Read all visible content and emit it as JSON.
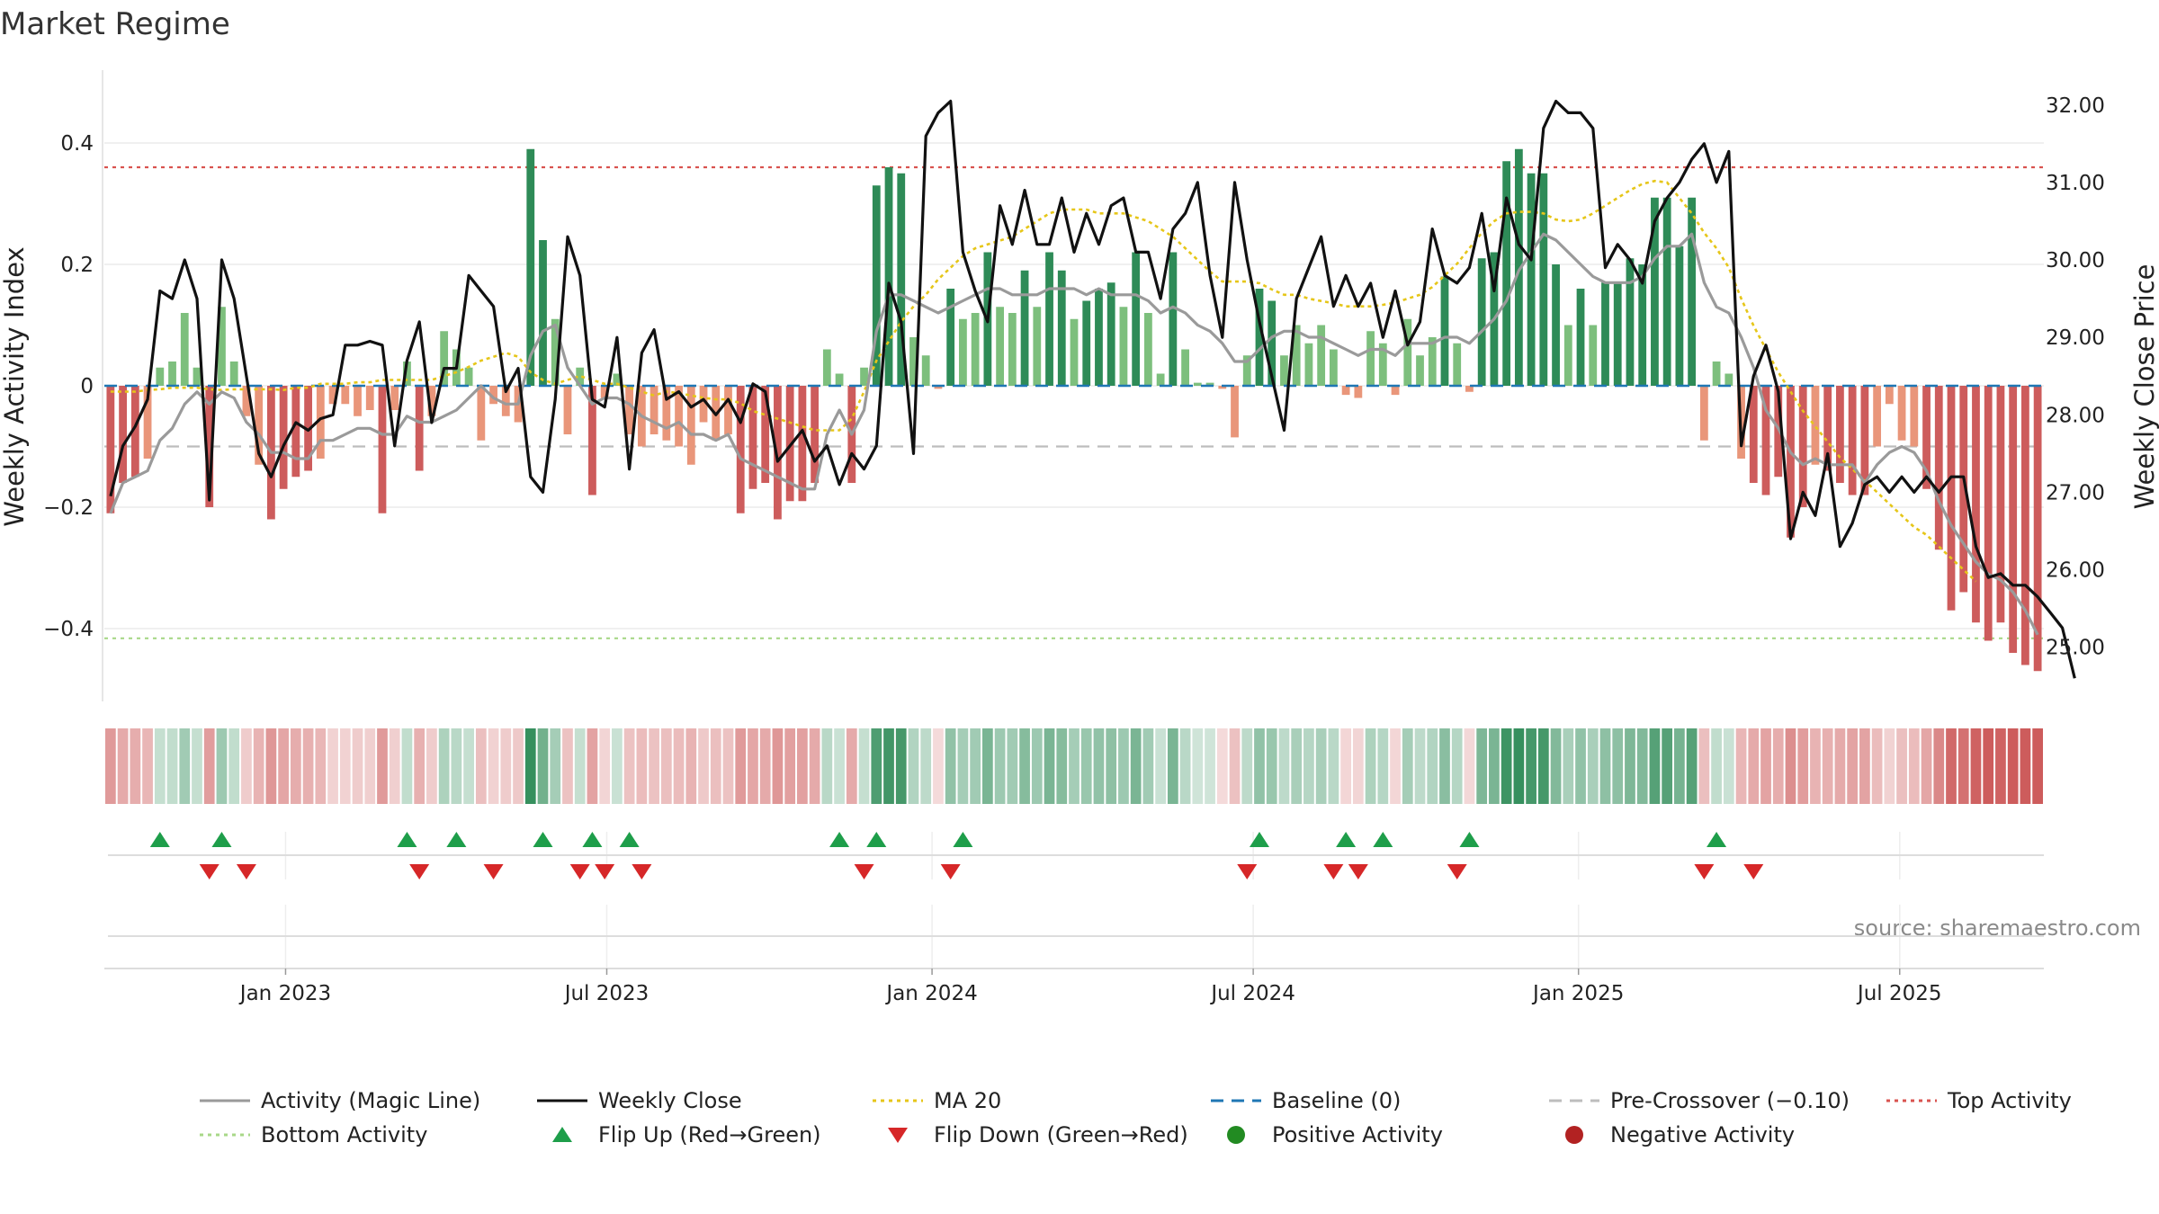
{
  "title": "Market Regime",
  "source_text": "source: sharemaestro.com",
  "colors": {
    "strong_green": "#2e8b57",
    "light_green": "#7dbf7d",
    "strong_red": "#cd5c5c",
    "light_red": "#e9967a",
    "magic_line": "#9a9a9a",
    "close": "#111111",
    "ma20": "#e6c619",
    "baseline": "#1f77b4",
    "pre_crossover": "#bdbdbd",
    "top_line": "#d9534f",
    "bottom_line": "#a8d888",
    "flip_up": "#1e9e4a",
    "flip_down": "#d62728",
    "positive_dot": "#228b22",
    "negative_dot": "#b22222"
  },
  "legend": [
    {
      "label": "Activity (Magic Line)",
      "kind": "line",
      "color": "#9a9a9a",
      "dash": "none"
    },
    {
      "label": "Weekly Close",
      "kind": "line",
      "color": "#111111",
      "dash": "none"
    },
    {
      "label": "MA 20",
      "kind": "line",
      "color": "#e6c619",
      "dash": "dot"
    },
    {
      "label": "Baseline (0)",
      "kind": "line",
      "color": "#1f77b4",
      "dash": "dash"
    },
    {
      "label": "Pre-Crossover (−0.10)",
      "kind": "line",
      "color": "#bdbdbd",
      "dash": "dash"
    },
    {
      "label": "Top Activity",
      "kind": "line",
      "color": "#d9534f",
      "dash": "dot"
    },
    {
      "label": "Bottom Activity",
      "kind": "line",
      "color": "#a8d888",
      "dash": "dot"
    },
    {
      "label": "Flip Up (Red→Green)",
      "kind": "tri-up",
      "color": "#1e9e4a"
    },
    {
      "label": "Flip Down (Green→Red)",
      "kind": "tri-down",
      "color": "#d62728"
    },
    {
      "label": "Positive Activity",
      "kind": "dot",
      "color": "#228b22"
    },
    {
      "label": "Negative Activity",
      "kind": "dot",
      "color": "#b22222"
    }
  ],
  "chart_data": {
    "type": "bar",
    "title": "Market Regime",
    "ylabel_left": "Weekly Activity Index",
    "ylabel_right": "Weekly Close Price",
    "ylim_left": [
      -0.52,
      0.52
    ],
    "ylim_right": [
      24.3,
      32.45
    ],
    "yticks_left": [
      {
        "v": 0.4,
        "label": "0.4"
      },
      {
        "v": 0.2,
        "label": "0.2"
      },
      {
        "v": 0,
        "label": "0"
      },
      {
        "v": -0.2,
        "label": "−0.2"
      },
      {
        "v": -0.4,
        "label": "−0.4"
      }
    ],
    "yticks_right": [
      {
        "v": 32,
        "label": "32.00"
      },
      {
        "v": 31,
        "label": "31.00"
      },
      {
        "v": 30,
        "label": "30.00"
      },
      {
        "v": 29,
        "label": "29.00"
      },
      {
        "v": 28,
        "label": "28.00"
      },
      {
        "v": 27,
        "label": "27.00"
      },
      {
        "v": 26,
        "label": "26.00"
      },
      {
        "v": 25,
        "label": "25.00"
      }
    ],
    "x_range": [
      0,
      157
    ],
    "x_ticks": [
      {
        "x": 14.67,
        "label": "Jan 2023"
      },
      {
        "x": 40.67,
        "label": "Jul 2023"
      },
      {
        "x": 67.0,
        "label": "Jan 2024"
      },
      {
        "x": 93.0,
        "label": "Jul 2024"
      },
      {
        "x": 119.33,
        "label": "Jan 2025"
      },
      {
        "x": 145.33,
        "label": "Jul 2025"
      }
    ],
    "reference_lines": {
      "top": 0.36,
      "bottom": -0.416,
      "pre_crossover": -0.1,
      "baseline": 0
    },
    "activity": [
      -0.21,
      -0.16,
      -0.15,
      -0.12,
      0.03,
      0.04,
      0.12,
      0.03,
      -0.2,
      0.13,
      0.04,
      -0.05,
      -0.13,
      -0.22,
      -0.17,
      -0.15,
      -0.14,
      -0.12,
      -0.03,
      -0.03,
      -0.05,
      -0.04,
      -0.21,
      -0.04,
      0.04,
      -0.14,
      -0.05,
      0.09,
      0.06,
      0.03,
      -0.09,
      -0.03,
      -0.05,
      -0.06,
      0.39,
      0.24,
      0.11,
      -0.08,
      0.03,
      -0.18,
      -0.02,
      0.02,
      -0.08,
      -0.1,
      -0.08,
      -0.09,
      -0.1,
      -0.13,
      -0.06,
      -0.09,
      -0.08,
      -0.21,
      -0.17,
      -0.16,
      -0.22,
      -0.19,
      -0.19,
      -0.16,
      0.06,
      0.02,
      -0.16,
      0.03,
      0.33,
      0.36,
      0.35,
      0.08,
      0.05,
      -0.005,
      0.16,
      0.11,
      0.12,
      0.22,
      0.13,
      0.12,
      0.19,
      0.13,
      0.22,
      0.19,
      0.11,
      0.14,
      0.16,
      0.17,
      0.13,
      0.22,
      0.12,
      0.02,
      0.22,
      0.06,
      0.005,
      0.005,
      -0.005,
      -0.085,
      0.05,
      0.16,
      0.14,
      0.05,
      0.1,
      0.07,
      0.1,
      0.06,
      -0.015,
      -0.02,
      0.09,
      0.07,
      -0.015,
      0.11,
      0.05,
      0.08,
      0.18,
      0.07,
      -0.01,
      0.21,
      0.22,
      0.37,
      0.39,
      0.35,
      0.35,
      0.2,
      0.1,
      0.16,
      0.1,
      0.17,
      0.17,
      0.21,
      0.2,
      0.31,
      0.31,
      0.23,
      0.31,
      -0.09,
      0.04,
      0.02,
      -0.12,
      -0.16,
      -0.18,
      -0.15,
      -0.25,
      -0.2,
      -0.13,
      -0.14,
      -0.16,
      -0.18,
      -0.18,
      -0.1,
      -0.03,
      -0.09,
      -0.1,
      -0.17,
      -0.27,
      -0.37,
      -0.34,
      -0.39,
      -0.42,
      -0.39,
      -0.44,
      -0.46,
      -0.47
    ],
    "magic_line": [
      -0.21,
      -0.16,
      -0.15,
      -0.14,
      -0.09,
      -0.07,
      -0.03,
      -0.01,
      -0.03,
      -0.01,
      -0.02,
      -0.06,
      -0.08,
      -0.11,
      -0.11,
      -0.12,
      -0.12,
      -0.09,
      -0.09,
      -0.08,
      -0.07,
      -0.07,
      -0.08,
      -0.08,
      -0.05,
      -0.06,
      -0.06,
      -0.05,
      -0.04,
      -0.02,
      0.0,
      -0.02,
      -0.03,
      -0.03,
      0.05,
      0.09,
      0.1,
      0.03,
      0.0,
      -0.03,
      -0.02,
      -0.02,
      -0.03,
      -0.05,
      -0.06,
      -0.07,
      -0.06,
      -0.08,
      -0.08,
      -0.09,
      -0.08,
      -0.12,
      -0.13,
      -0.14,
      -0.15,
      -0.16,
      -0.17,
      -0.17,
      -0.08,
      -0.04,
      -0.08,
      -0.04,
      0.09,
      0.15,
      0.15,
      0.14,
      0.13,
      0.12,
      0.13,
      0.14,
      0.15,
      0.16,
      0.16,
      0.15,
      0.15,
      0.15,
      0.16,
      0.16,
      0.16,
      0.15,
      0.16,
      0.15,
      0.15,
      0.15,
      0.14,
      0.12,
      0.13,
      0.12,
      0.1,
      0.09,
      0.07,
      0.04,
      0.04,
      0.06,
      0.08,
      0.09,
      0.09,
      0.08,
      0.08,
      0.07,
      0.06,
      0.05,
      0.06,
      0.06,
      0.05,
      0.07,
      0.07,
      0.07,
      0.08,
      0.08,
      0.07,
      0.09,
      0.11,
      0.14,
      0.19,
      0.22,
      0.25,
      0.24,
      0.22,
      0.2,
      0.18,
      0.17,
      0.17,
      0.17,
      0.18,
      0.21,
      0.23,
      0.23,
      0.25,
      0.17,
      0.13,
      0.12,
      0.08,
      0.03,
      -0.04,
      -0.07,
      -0.11,
      -0.13,
      -0.12,
      -0.13,
      -0.13,
      -0.13,
      -0.16,
      -0.13,
      -0.11,
      -0.1,
      -0.11,
      -0.14,
      -0.19,
      -0.23,
      -0.26,
      -0.29,
      -0.31,
      -0.32,
      -0.34,
      -0.37,
      -0.41
    ],
    "weekly_close": [
      26.95,
      27.6,
      27.85,
      28.2,
      29.6,
      29.5,
      30.0,
      29.5,
      26.9,
      30.0,
      29.5,
      28.5,
      27.5,
      27.2,
      27.6,
      27.9,
      27.8,
      27.95,
      28.0,
      28.9,
      28.9,
      28.95,
      28.9,
      27.6,
      28.7,
      29.2,
      27.9,
      28.6,
      28.6,
      29.8,
      29.6,
      29.4,
      28.3,
      28.6,
      27.2,
      27.0,
      28.2,
      30.3,
      29.8,
      28.2,
      28.1,
      29.0,
      27.3,
      28.8,
      29.1,
      28.2,
      28.3,
      28.1,
      28.2,
      28.0,
      28.2,
      27.9,
      28.4,
      28.3,
      27.4,
      27.6,
      27.8,
      27.4,
      27.6,
      27.1,
      27.5,
      27.3,
      27.6,
      29.7,
      29.2,
      27.5,
      31.6,
      31.9,
      32.05,
      30.1,
      29.6,
      29.2,
      30.7,
      30.2,
      30.9,
      30.2,
      30.2,
      30.8,
      30.1,
      30.6,
      30.2,
      30.7,
      30.8,
      30.1,
      30.1,
      29.5,
      30.4,
      30.6,
      31.0,
      29.8,
      29.0,
      31.0,
      30.0,
      29.2,
      28.5,
      27.8,
      29.5,
      29.9,
      30.3,
      29.4,
      29.8,
      29.4,
      29.7,
      29.0,
      29.6,
      28.9,
      29.2,
      30.4,
      29.8,
      29.7,
      29.9,
      30.6,
      29.6,
      30.8,
      30.2,
      30.0,
      31.7,
      32.05,
      31.9,
      31.9,
      31.7,
      29.9,
      30.2,
      30.0,
      29.7,
      30.5,
      30.8,
      31.0,
      31.3,
      31.5,
      31.0,
      31.4,
      27.6,
      28.5,
      28.9,
      28.3,
      26.4,
      27.0,
      26.7,
      27.5,
      26.3,
      26.6,
      27.1,
      27.2,
      27.0,
      27.2,
      27.0,
      27.2,
      27.0,
      27.2,
      27.2,
      26.3,
      25.9,
      25.95,
      25.8,
      25.8,
      25.65,
      25.45,
      25.25,
      24.6
    ],
    "ma20": [
      28.3,
      28.3,
      28.3,
      28.32,
      28.33,
      28.35,
      28.35,
      28.35,
      28.33,
      28.32,
      28.33,
      28.33,
      28.33,
      28.33,
      28.32,
      28.35,
      28.35,
      28.4,
      28.4,
      28.4,
      28.42,
      28.42,
      28.45,
      28.45,
      28.45,
      28.45,
      28.45,
      28.5,
      28.55,
      28.62,
      28.7,
      28.75,
      28.8,
      28.75,
      28.55,
      28.45,
      28.4,
      28.45,
      28.5,
      28.45,
      28.4,
      28.4,
      28.35,
      28.3,
      28.25,
      28.3,
      28.28,
      28.25,
      28.22,
      28.2,
      28.2,
      28.15,
      28.05,
      28.0,
      27.95,
      27.9,
      27.85,
      27.8,
      27.8,
      27.8,
      27.95,
      28.3,
      28.7,
      28.95,
      29.2,
      29.4,
      29.55,
      29.75,
      29.9,
      30.05,
      30.15,
      30.2,
      30.25,
      30.3,
      30.4,
      30.5,
      30.6,
      30.65,
      30.65,
      30.65,
      30.6,
      30.6,
      30.6,
      30.55,
      30.5,
      30.4,
      30.3,
      30.15,
      30.0,
      29.85,
      29.72,
      29.72,
      29.72,
      29.7,
      29.62,
      29.55,
      29.55,
      29.5,
      29.47,
      29.44,
      29.4,
      29.4,
      29.4,
      29.42,
      29.45,
      29.5,
      29.55,
      29.65,
      29.8,
      29.95,
      30.15,
      30.35,
      30.5,
      30.6,
      30.62,
      30.62,
      30.6,
      30.52,
      30.5,
      30.52,
      30.6,
      30.7,
      30.8,
      30.9,
      30.98,
      31.02,
      31.0,
      30.8,
      30.6,
      30.35,
      30.15,
      29.9,
      29.5,
      29.15,
      28.85,
      28.55,
      28.3,
      28.05,
      27.85,
      27.65,
      27.45,
      27.3,
      27.15,
      27.0,
      26.85,
      26.7,
      26.55,
      26.45,
      26.3,
      26.15,
      26.0,
      25.85
    ],
    "flip_up_weeks": [
      4,
      9,
      24,
      28,
      35,
      39,
      42,
      59,
      62,
      69,
      93,
      100,
      103,
      110,
      130
    ],
    "flip_down_weeks": [
      8,
      11,
      25,
      31,
      38,
      40,
      43,
      61,
      68,
      92,
      99,
      101,
      109,
      129,
      133
    ]
  }
}
